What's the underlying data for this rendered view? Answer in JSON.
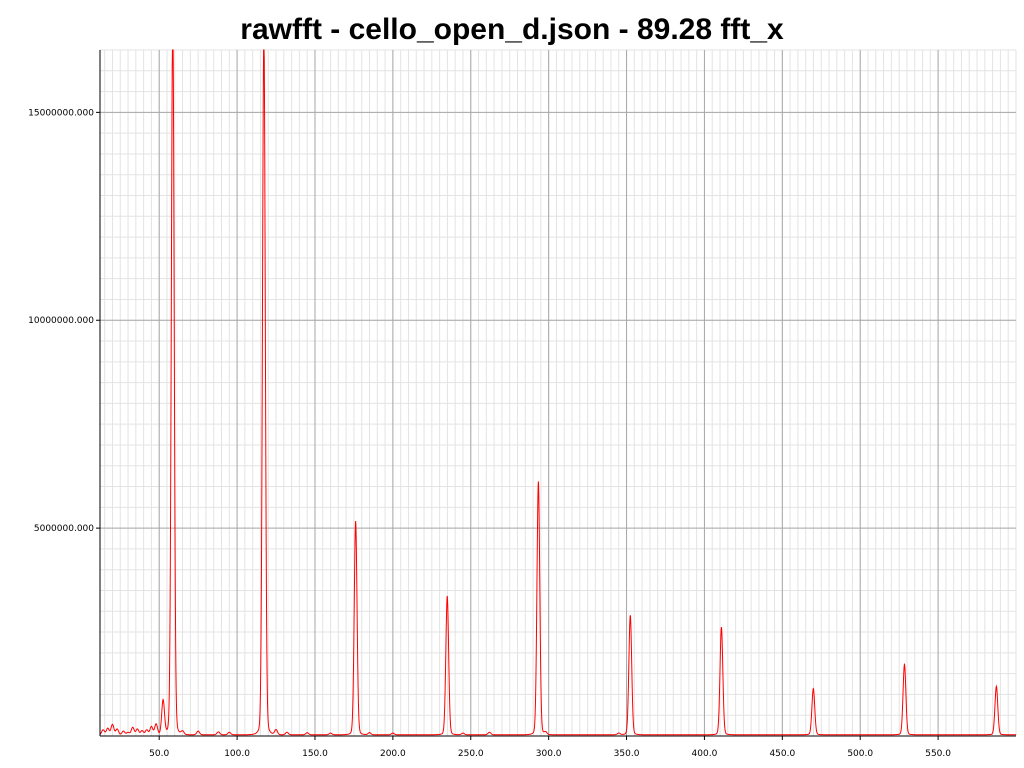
{
  "chart_data": {
    "type": "line",
    "title": "rawfft - cello_open_d.json - 89.28 fft_x",
    "xlabel": "",
    "ylabel": "",
    "xlim": [
      12,
      600
    ],
    "ylim": [
      0,
      16500000
    ],
    "x_ticks": [
      50.0,
      100.0,
      150.0,
      200.0,
      250.0,
      300.0,
      350.0,
      400.0,
      450.0,
      500.0,
      550.0
    ],
    "x_tick_labels": [
      "50.0",
      "100.0",
      "150.0",
      "200.0",
      "250.0",
      "300.0",
      "350.0",
      "400.0",
      "450.0",
      "500.0",
      "550.0"
    ],
    "y_ticks": [
      5000000,
      10000000,
      15000000
    ],
    "y_tick_labels": [
      "5000000.000",
      "10000000.000",
      "15000000.000"
    ],
    "x_minor_step": 5,
    "y_minor_step": 500000,
    "grid": true,
    "legend": "none",
    "line_color": "#ff0000",
    "baseline": 30000,
    "peak_width": 0.9,
    "series": [
      {
        "peaks": [
          {
            "x": 52.5,
            "y": 780000
          },
          {
            "x": 58.7,
            "y": 16500000
          },
          {
            "x": 117.2,
            "y": 16050000
          },
          {
            "x": 176.1,
            "y": 4850000
          },
          {
            "x": 234.9,
            "y": 3150000
          },
          {
            "x": 293.4,
            "y": 5750000
          },
          {
            "x": 352.4,
            "y": 2720000
          },
          {
            "x": 410.9,
            "y": 2450000
          },
          {
            "x": 469.9,
            "y": 1050000
          },
          {
            "x": 528.4,
            "y": 1600000
          },
          {
            "x": 587.4,
            "y": 1100000
          }
        ],
        "noise": [
          {
            "x": 14,
            "y": 120000
          },
          {
            "x": 17,
            "y": 160000
          },
          {
            "x": 20,
            "y": 250000
          },
          {
            "x": 23,
            "y": 140000
          },
          {
            "x": 27,
            "y": 90000
          },
          {
            "x": 30,
            "y": 60000
          },
          {
            "x": 33,
            "y": 180000
          },
          {
            "x": 36,
            "y": 140000
          },
          {
            "x": 39,
            "y": 100000
          },
          {
            "x": 42,
            "y": 120000
          },
          {
            "x": 45,
            "y": 200000
          },
          {
            "x": 48,
            "y": 260000
          },
          {
            "x": 65,
            "y": 80000
          },
          {
            "x": 75,
            "y": 90000
          },
          {
            "x": 88,
            "y": 70000
          },
          {
            "x": 95,
            "y": 60000
          },
          {
            "x": 125,
            "y": 120000
          },
          {
            "x": 132,
            "y": 60000
          },
          {
            "x": 145,
            "y": 50000
          },
          {
            "x": 160,
            "y": 40000
          },
          {
            "x": 185,
            "y": 50000
          },
          {
            "x": 200,
            "y": 40000
          },
          {
            "x": 245,
            "y": 40000
          },
          {
            "x": 262,
            "y": 60000
          },
          {
            "x": 298,
            "y": 60000
          },
          {
            "x": 345,
            "y": 40000
          }
        ]
      }
    ]
  }
}
